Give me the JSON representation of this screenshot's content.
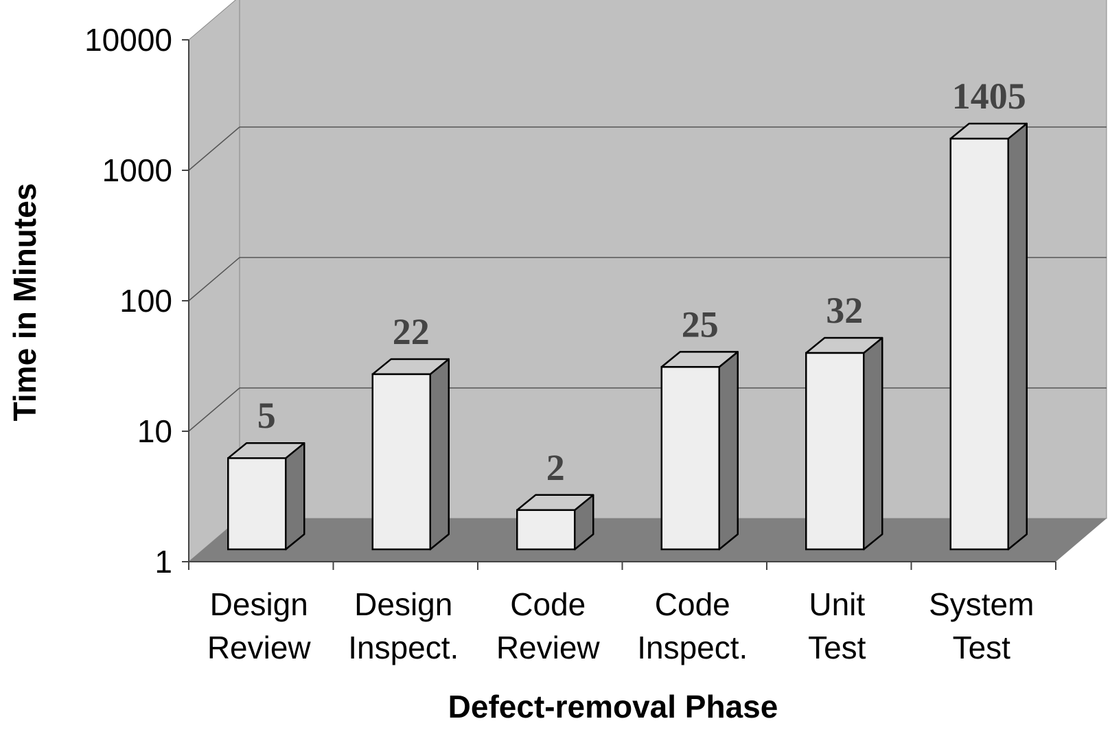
{
  "chart_data": {
    "type": "bar",
    "style": "3d-column",
    "scale": "log",
    "xlabel": "Defect-removal Phase",
    "ylabel": "Time in Minutes",
    "ylim": [
      1,
      10000
    ],
    "yticks": [
      "1",
      "10",
      "100",
      "1000",
      "10000"
    ],
    "gridlines": true,
    "categories": [
      [
        "Design",
        "Review"
      ],
      [
        "Design",
        "Inspect."
      ],
      [
        "Code",
        "Review"
      ],
      [
        "Code",
        "Inspect."
      ],
      [
        "Unit",
        "Test"
      ],
      [
        "System",
        "Test"
      ]
    ],
    "values": [
      5,
      22,
      2,
      25,
      32,
      1405
    ],
    "data_labels": [
      "5",
      "22",
      "2",
      "25",
      "32",
      "1405"
    ],
    "colors": {
      "wall": "#c0c0c0",
      "floor": "#808080",
      "bar_front": "#eeeeee",
      "bar_side": "#777777",
      "bar_top": "#cccccc",
      "data_label": "#444444",
      "gridline": "#555555"
    }
  }
}
